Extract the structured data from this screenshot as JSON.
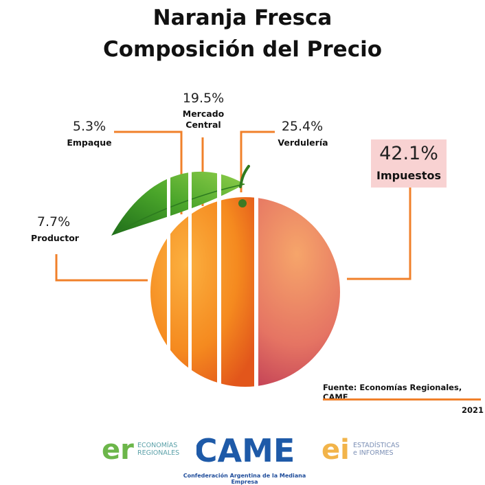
{
  "title_line1": "Naranja Fresca",
  "title_line2": "Composición del Precio",
  "chart_data": {
    "type": "pie",
    "title": "Naranja Fresca Composición del Precio",
    "slices": [
      {
        "name": "Productor",
        "value": 7.7,
        "label": "7.7%"
      },
      {
        "name": "Empaque",
        "value": 5.3,
        "label": "5.3%"
      },
      {
        "name": "Mercado Central",
        "value": 19.5,
        "label": "19.5%"
      },
      {
        "name": "Verdulería",
        "value": 25.4,
        "label": "25.4%"
      },
      {
        "name": "Impuestos",
        "value": 42.1,
        "label": "42.1%"
      }
    ],
    "colors": {
      "orange": "#f39a1c",
      "orange_dark": "#ec6a12",
      "pink": "#d9596a",
      "leader_line": "#f0802a",
      "highlight_box": "#f8d2d2"
    }
  },
  "labels": {
    "productor_pct": "7.7%",
    "productor": "Productor",
    "empaque_pct": "5.3%",
    "empaque": "Empaque",
    "mercado_pct": "19.5%",
    "mercado_l1": "Mercado",
    "mercado_l2": "Central",
    "verduleria_pct": "25.4%",
    "verduleria": "Verdulería",
    "impuestos_pct": "42.1%",
    "impuestos": "Impuestos"
  },
  "footer": {
    "source": "Fuente: Economías Regionales, CAME",
    "year": "2021"
  },
  "logos": {
    "er_mark": "er",
    "er_line1": "ECONOMÍAS",
    "er_line2": "REGIONALES",
    "came_mark": "CAME",
    "came_sub": "Confederación Argentina de la Mediana Empresa",
    "ei_mark": "ei",
    "ei_line1": "ESTADÍSTICAS",
    "ei_line2": "e INFORMES"
  }
}
